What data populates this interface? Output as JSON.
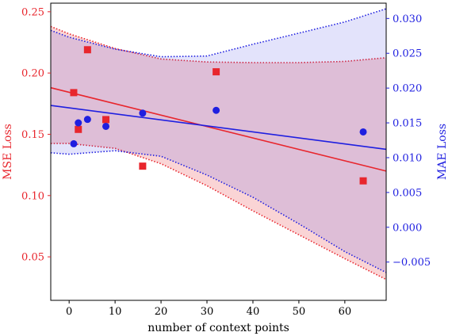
{
  "chart_data": {
    "type": "scatter",
    "xlabel": "number of context points",
    "ylabel_left": "MSE Loss",
    "ylabel_right": "MAE Loss",
    "xlim": [
      -4,
      69
    ],
    "ylim_left": [
      0.0145,
      0.257
    ],
    "ylim_right": [
      -0.0105,
      0.0322
    ],
    "x_ticks": [
      0,
      10,
      20,
      30,
      40,
      50,
      60
    ],
    "y_ticks_left": [
      0.05,
      0.1,
      0.15,
      0.2,
      0.25
    ],
    "y_ticks_right": [
      -0.005,
      0.0,
      0.005,
      0.01,
      0.015,
      0.02,
      0.025,
      0.03
    ],
    "x_tick_labels": [
      "0",
      "10",
      "20",
      "30",
      "40",
      "50",
      "60"
    ],
    "y_tick_labels_left": [
      "0.05",
      "0.10",
      "0.15",
      "0.20",
      "0.25"
    ],
    "y_tick_labels_right": [
      "−0.005",
      "0.000",
      "0.005",
      "0.010",
      "0.015",
      "0.020",
      "0.025",
      "0.030"
    ],
    "colors": {
      "mse": "#e8262d",
      "mae": "#1f1fe0"
    },
    "series": [
      {
        "axis": "left",
        "color": "#e8262d",
        "marker": "square",
        "points": [
          {
            "x": 1,
            "y": 0.184
          },
          {
            "x": 2,
            "y": 0.154
          },
          {
            "x": 4,
            "y": 0.219
          },
          {
            "x": 8,
            "y": 0.162
          },
          {
            "x": 16,
            "y": 0.124
          },
          {
            "x": 32,
            "y": 0.201
          },
          {
            "x": 64,
            "y": 0.112
          }
        ],
        "fit": [
          [
            -4,
            0.188
          ],
          [
            69,
            0.12
          ]
        ],
        "band_upper": [
          [
            -4,
            0.238
          ],
          [
            0,
            0.232
          ],
          [
            10,
            0.22
          ],
          [
            20,
            0.2115
          ],
          [
            30,
            0.209
          ],
          [
            40,
            0.2085
          ],
          [
            50,
            0.2085
          ],
          [
            60,
            0.2095
          ],
          [
            69,
            0.2125
          ]
        ],
        "band_lower": [
          [
            -4,
            0.1425
          ],
          [
            0,
            0.1425
          ],
          [
            10,
            0.1385
          ],
          [
            20,
            0.126
          ],
          [
            30,
            0.108
          ],
          [
            40,
            0.0875
          ],
          [
            50,
            0.068
          ],
          [
            60,
            0.0485
          ],
          [
            69,
            0.0315
          ]
        ]
      },
      {
        "axis": "right",
        "color": "#1f1fe0",
        "marker": "circle",
        "points": [
          {
            "x": 1,
            "y": 0.012
          },
          {
            "x": 2,
            "y": 0.015
          },
          {
            "x": 4,
            "y": 0.0155
          },
          {
            "x": 8,
            "y": 0.0145
          },
          {
            "x": 16,
            "y": 0.0164
          },
          {
            "x": 32,
            "y": 0.0168
          },
          {
            "x": 64,
            "y": 0.0137
          }
        ],
        "fit": [
          [
            -4,
            0.0175
          ],
          [
            69,
            0.0112
          ]
        ],
        "band_upper": [
          [
            -4,
            0.0283
          ],
          [
            0,
            0.0273
          ],
          [
            10,
            0.0256
          ],
          [
            20,
            0.0245
          ],
          [
            30,
            0.0246
          ],
          [
            40,
            0.0263
          ],
          [
            50,
            0.0279
          ],
          [
            60,
            0.0295
          ],
          [
            69,
            0.0314
          ]
        ],
        "band_lower": [
          [
            -4,
            0.0107
          ],
          [
            0,
            0.0105
          ],
          [
            10,
            0.011
          ],
          [
            20,
            0.0102
          ],
          [
            30,
            0.0075
          ],
          [
            40,
            0.0043
          ],
          [
            50,
            0.0005
          ],
          [
            60,
            -0.0035
          ],
          [
            69,
            -0.0065
          ]
        ]
      }
    ]
  }
}
